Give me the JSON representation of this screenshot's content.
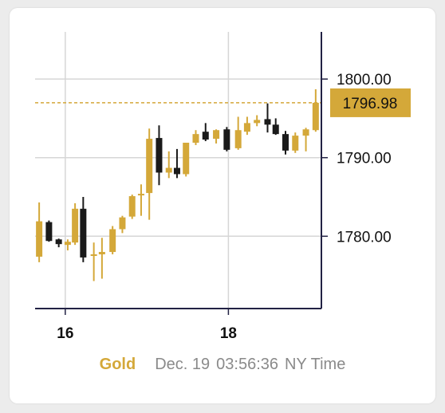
{
  "footer": {
    "metal": "Gold",
    "date": "Dec. 19",
    "time": "03:56:36",
    "timezone": "NY Time"
  },
  "colors": {
    "up": "#d4a839",
    "down": "#1a1a1a",
    "grid": "#d6d6d6",
    "axis": "#222244",
    "price_label_bg": "#d4a839",
    "price_label_text": "#111111"
  },
  "chart_data": {
    "type": "candlestick",
    "x_ticks": [
      {
        "label": "16",
        "x": 16
      },
      {
        "label": "18",
        "x": 18
      }
    ],
    "y_ticks": [
      {
        "label": "1800.00",
        "value": 1800
      },
      {
        "label": "1790.00",
        "value": 1790
      },
      {
        "label": "1780.00",
        "value": 1780
      }
    ],
    "xlim": [
      15.63,
      19.14
    ],
    "ylim": [
      1770.8,
      1806.0
    ],
    "current_price": 1796.98,
    "current_price_label": "1796.98",
    "candles": [
      {
        "t": 15.68,
        "o": 1777.4,
        "h": 1784.3,
        "l": 1776.7,
        "c": 1781.9
      },
      {
        "t": 15.8,
        "o": 1781.8,
        "h": 1782.0,
        "l": 1779.3,
        "c": 1779.4
      },
      {
        "t": 15.92,
        "o": 1779.6,
        "h": 1779.7,
        "l": 1778.6,
        "c": 1779.0
      },
      {
        "t": 16.03,
        "o": 1778.9,
        "h": 1779.6,
        "l": 1778.2,
        "c": 1779.3
      },
      {
        "t": 16.12,
        "o": 1779.2,
        "h": 1784.2,
        "l": 1778.9,
        "c": 1783.5
      },
      {
        "t": 16.22,
        "o": 1783.5,
        "h": 1785.0,
        "l": 1776.7,
        "c": 1777.3
      },
      {
        "t": 16.35,
        "o": 1777.5,
        "h": 1779.2,
        "l": 1774.3,
        "c": 1777.7
      },
      {
        "t": 16.45,
        "o": 1777.7,
        "h": 1779.8,
        "l": 1774.6,
        "c": 1778.0
      },
      {
        "t": 16.58,
        "o": 1778.0,
        "h": 1781.3,
        "l": 1777.7,
        "c": 1780.9
      },
      {
        "t": 16.7,
        "o": 1780.9,
        "h": 1782.6,
        "l": 1780.4,
        "c": 1782.4
      },
      {
        "t": 16.82,
        "o": 1782.5,
        "h": 1785.3,
        "l": 1782.2,
        "c": 1785.1
      },
      {
        "t": 16.93,
        "o": 1785.2,
        "h": 1786.6,
        "l": 1782.6,
        "c": 1785.4
      },
      {
        "t": 17.03,
        "o": 1785.5,
        "h": 1793.7,
        "l": 1782.1,
        "c": 1792.4
      },
      {
        "t": 17.15,
        "o": 1792.5,
        "h": 1794.1,
        "l": 1786.5,
        "c": 1788.1
      },
      {
        "t": 17.27,
        "o": 1788.1,
        "h": 1790.8,
        "l": 1787.4,
        "c": 1788.7
      },
      {
        "t": 17.37,
        "o": 1788.7,
        "h": 1791.1,
        "l": 1787.4,
        "c": 1787.9
      },
      {
        "t": 17.48,
        "o": 1787.9,
        "h": 1791.9,
        "l": 1787.6,
        "c": 1791.9
      },
      {
        "t": 17.6,
        "o": 1791.9,
        "h": 1793.5,
        "l": 1791.6,
        "c": 1793.0
      },
      {
        "t": 17.72,
        "o": 1793.3,
        "h": 1794.4,
        "l": 1792.1,
        "c": 1792.3
      },
      {
        "t": 17.85,
        "o": 1792.4,
        "h": 1793.6,
        "l": 1791.8,
        "c": 1793.5
      },
      {
        "t": 17.98,
        "o": 1793.6,
        "h": 1793.9,
        "l": 1790.8,
        "c": 1791.0
      },
      {
        "t": 18.12,
        "o": 1791.2,
        "h": 1795.2,
        "l": 1791.0,
        "c": 1793.5
      },
      {
        "t": 18.23,
        "o": 1793.3,
        "h": 1795.2,
        "l": 1792.9,
        "c": 1794.4
      },
      {
        "t": 18.35,
        "o": 1794.4,
        "h": 1795.4,
        "l": 1794.0,
        "c": 1794.8
      },
      {
        "t": 18.48,
        "o": 1794.9,
        "h": 1796.9,
        "l": 1793.2,
        "c": 1794.2
      },
      {
        "t": 18.58,
        "o": 1794.2,
        "h": 1795.0,
        "l": 1792.9,
        "c": 1793.0
      },
      {
        "t": 18.7,
        "o": 1793.0,
        "h": 1793.4,
        "l": 1790.4,
        "c": 1790.9
      },
      {
        "t": 18.82,
        "o": 1790.9,
        "h": 1793.2,
        "l": 1790.6,
        "c": 1792.8
      },
      {
        "t": 18.95,
        "o": 1792.8,
        "h": 1793.8,
        "l": 1790.8,
        "c": 1793.6
      },
      {
        "t": 19.07,
        "o": 1793.5,
        "h": 1798.7,
        "l": 1793.3,
        "c": 1796.98
      }
    ]
  }
}
